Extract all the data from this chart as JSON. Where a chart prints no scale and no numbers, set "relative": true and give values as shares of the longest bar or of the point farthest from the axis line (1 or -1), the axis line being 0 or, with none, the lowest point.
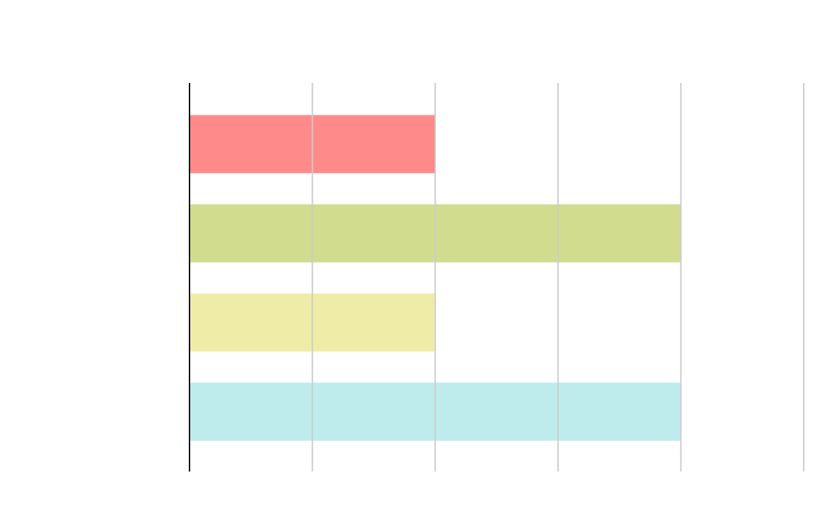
{
  "chart_data": {
    "type": "bar",
    "orientation": "horizontal",
    "relative": true,
    "categories": [
      null,
      null,
      null,
      null
    ],
    "values": [
      0.5,
      1,
      0.5,
      1
    ],
    "colors": [
      "#ff8a8a",
      "#d2dc8f",
      "#efeca8",
      "#beecec"
    ],
    "grid": "x"
  }
}
